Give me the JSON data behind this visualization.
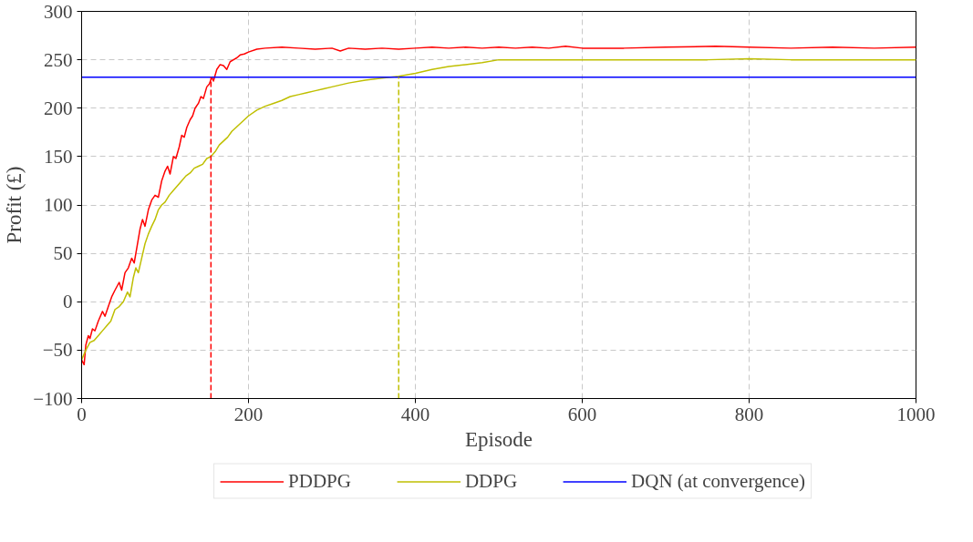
{
  "chart_data": {
    "type": "line",
    "xlabel": "Episode",
    "ylabel": "Profit (£)",
    "xlim": [
      0,
      1000
    ],
    "ylim": [
      -100,
      300
    ],
    "xticks": [
      0,
      200,
      400,
      600,
      800,
      1000
    ],
    "yticks": [
      -100,
      -50,
      0,
      50,
      100,
      150,
      200,
      250,
      300
    ],
    "grid": true,
    "legend": "bottom",
    "marker": "none",
    "series": [
      {
        "name": "PDDPG",
        "color": "#ff0000",
        "x": [
          0,
          3,
          5,
          8,
          10,
          13,
          16,
          20,
          25,
          28,
          32,
          36,
          40,
          45,
          48,
          52,
          56,
          60,
          63,
          66,
          70,
          73,
          76,
          80,
          84,
          88,
          92,
          96,
          100,
          103,
          106,
          110,
          113,
          117,
          120,
          123,
          126,
          130,
          133,
          136,
          140,
          143,
          146,
          150,
          153,
          156,
          158,
          162,
          166,
          170,
          174,
          178,
          182,
          186,
          190,
          195,
          200,
          210,
          220,
          240,
          260,
          280,
          300,
          310,
          320,
          340,
          360,
          380,
          400,
          420,
          440,
          460,
          480,
          500,
          520,
          540,
          560,
          580,
          600,
          650,
          700,
          760,
          800,
          850,
          900,
          950,
          1000
        ],
        "values": [
          -60,
          -65,
          -45,
          -35,
          -38,
          -28,
          -30,
          -20,
          -10,
          -15,
          -5,
          5,
          12,
          20,
          12,
          30,
          35,
          45,
          40,
          55,
          75,
          85,
          78,
          95,
          105,
          110,
          108,
          125,
          135,
          140,
          132,
          150,
          148,
          160,
          172,
          170,
          180,
          188,
          192,
          200,
          205,
          212,
          210,
          222,
          225,
          232,
          228,
          240,
          245,
          244,
          240,
          248,
          250,
          252,
          255,
          256,
          258,
          261,
          262,
          263,
          262,
          261,
          262,
          259,
          262,
          261,
          262,
          261,
          262,
          263,
          262,
          263,
          262,
          263,
          262,
          263,
          262,
          264,
          262,
          262,
          263,
          264,
          263,
          262,
          263,
          262,
          263
        ]
      },
      {
        "name": "DDPG",
        "color": "#bfbf00",
        "x": [
          0,
          5,
          10,
          15,
          20,
          25,
          30,
          35,
          40,
          45,
          50,
          55,
          58,
          62,
          65,
          68,
          72,
          76,
          80,
          84,
          88,
          92,
          96,
          100,
          105,
          110,
          115,
          120,
          125,
          130,
          135,
          140,
          145,
          150,
          155,
          160,
          165,
          170,
          175,
          180,
          185,
          190,
          195,
          200,
          210,
          220,
          230,
          240,
          250,
          260,
          270,
          280,
          290,
          300,
          320,
          340,
          360,
          380,
          400,
          420,
          440,
          460,
          480,
          500,
          520,
          550,
          600,
          650,
          700,
          750,
          800,
          850,
          900,
          950,
          1000
        ],
        "values": [
          -60,
          -50,
          -42,
          -40,
          -35,
          -30,
          -25,
          -20,
          -8,
          -5,
          0,
          10,
          5,
          25,
          35,
          30,
          45,
          60,
          70,
          78,
          85,
          95,
          100,
          103,
          110,
          115,
          120,
          125,
          130,
          133,
          138,
          140,
          142,
          148,
          150,
          155,
          162,
          166,
          170,
          176,
          180,
          184,
          188,
          192,
          198,
          202,
          205,
          208,
          212,
          214,
          216,
          218,
          220,
          222,
          226,
          229,
          231,
          233,
          236,
          240,
          243,
          245,
          247,
          250,
          250,
          250,
          250,
          250,
          250,
          250,
          251,
          250,
          250,
          250,
          250
        ]
      },
      {
        "name": "DQN (at convergence)",
        "color": "#0000ff",
        "x": [
          0,
          1000
        ],
        "values": [
          232,
          232
        ]
      },
      {
        "color": "#ff0000",
        "line_style": "dashed",
        "x": [
          155,
          155
        ],
        "values": [
          -100,
          232
        ]
      },
      {
        "color": "#bfbf00",
        "line_style": "dashed",
        "x": [
          380,
          380
        ],
        "values": [
          -100,
          232
        ]
      }
    ]
  }
}
